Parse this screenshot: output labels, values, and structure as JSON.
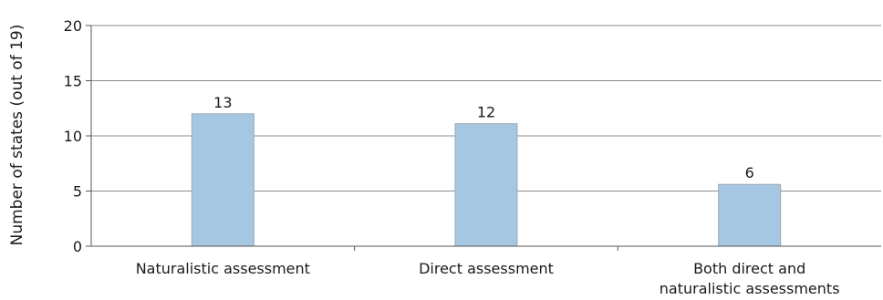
{
  "chart_data": {
    "type": "bar",
    "title": "",
    "xlabel": "",
    "ylabel": "Number of states (out of 19)",
    "ylim": [
      0,
      20
    ],
    "yticks": [
      0,
      5,
      10,
      15,
      20
    ],
    "grid": true,
    "categories": [
      [
        "Naturalistic assessment"
      ],
      [
        "Direct assessment"
      ],
      [
        "Both direct and",
        "naturalistic assessments"
      ]
    ],
    "values": [
      13,
      12,
      6
    ],
    "bar_values_drawn": [
      12,
      11.1,
      5.6
    ],
    "colors": {
      "bar": "#a6c7e2",
      "bar_stroke": "#9aa8b3",
      "grid": "#8c8c8c",
      "axis": "#555555"
    }
  }
}
